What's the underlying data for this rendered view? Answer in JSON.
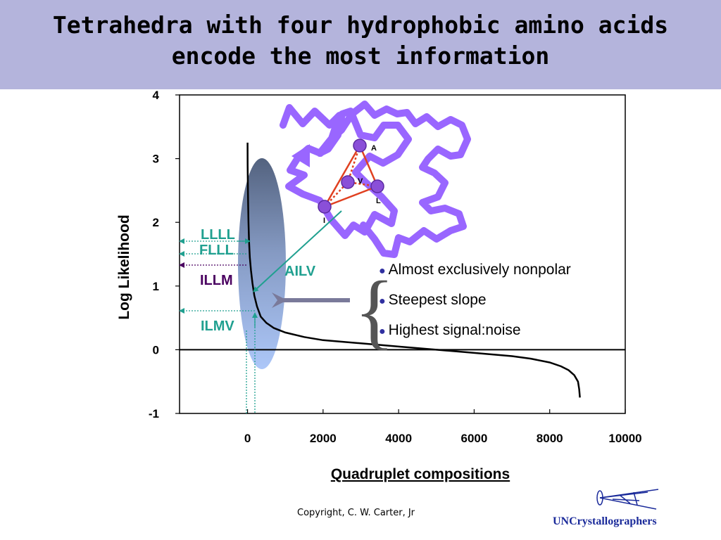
{
  "slide": {
    "title_line1": "Tetrahedra with four hydrophobic amino acids",
    "title_line2": "encode the most information",
    "copyright": "Copyright, C. W. Carter, Jr",
    "brand": "UNCrystallographers",
    "bullets": [
      "Almost exclusively nonpolar",
      "Steepest slope",
      "Highest signal:noise"
    ],
    "tetrahedron_labels": [
      "A",
      "V",
      "L",
      "I"
    ],
    "colors": {
      "banner": "#b4b4dc",
      "protein_trace": "#9966ff",
      "tetra_edges": "#e04020",
      "annotation_green": "#20a090",
      "annotation_purple": "#4a0060",
      "ellipse_top": "#4a5a78",
      "ellipse_bottom": "#a8c4f8"
    }
  },
  "chart_data": {
    "type": "line",
    "xlabel": "Quadruplet compositions",
    "ylabel": "Log Likelihood",
    "xlim": [
      -1800,
      10000
    ],
    "ylim": [
      -1,
      4
    ],
    "x_ticks": [
      "0",
      "2000",
      "4000",
      "6000",
      "8000",
      "10000"
    ],
    "y_ticks": [
      "-1",
      "0",
      "1",
      "2",
      "3",
      "4"
    ],
    "grid": false,
    "series": [
      {
        "x": [
          0,
          3,
          8,
          15,
          25,
          40,
          60,
          90,
          130,
          180,
          250,
          350,
          500,
          700,
          1000,
          1500,
          2000,
          3000,
          4000,
          5000,
          6000,
          7000,
          7500,
          8000,
          8300,
          8500,
          8650,
          8750,
          8780,
          8800
        ],
        "y": [
          3.25,
          2.9,
          2.6,
          2.3,
          2.0,
          1.7,
          1.45,
          1.25,
          1.05,
          0.85,
          0.68,
          0.52,
          0.42,
          0.34,
          0.27,
          0.2,
          0.15,
          0.1,
          0.05,
          0.0,
          -0.05,
          -0.1,
          -0.14,
          -0.2,
          -0.26,
          -0.32,
          -0.4,
          -0.5,
          -0.62,
          -0.75
        ]
      }
    ],
    "hline": 0,
    "annotations": [
      {
        "label": "LLLL",
        "y": 1.68
      },
      {
        "label": "FLLL",
        "y": 1.5
      },
      {
        "label": "ILLM",
        "y": 1.3
      },
      {
        "label": "ILMV",
        "y": 0.6
      },
      {
        "label": "AILV",
        "x": 200,
        "y": 0.9
      }
    ]
  }
}
